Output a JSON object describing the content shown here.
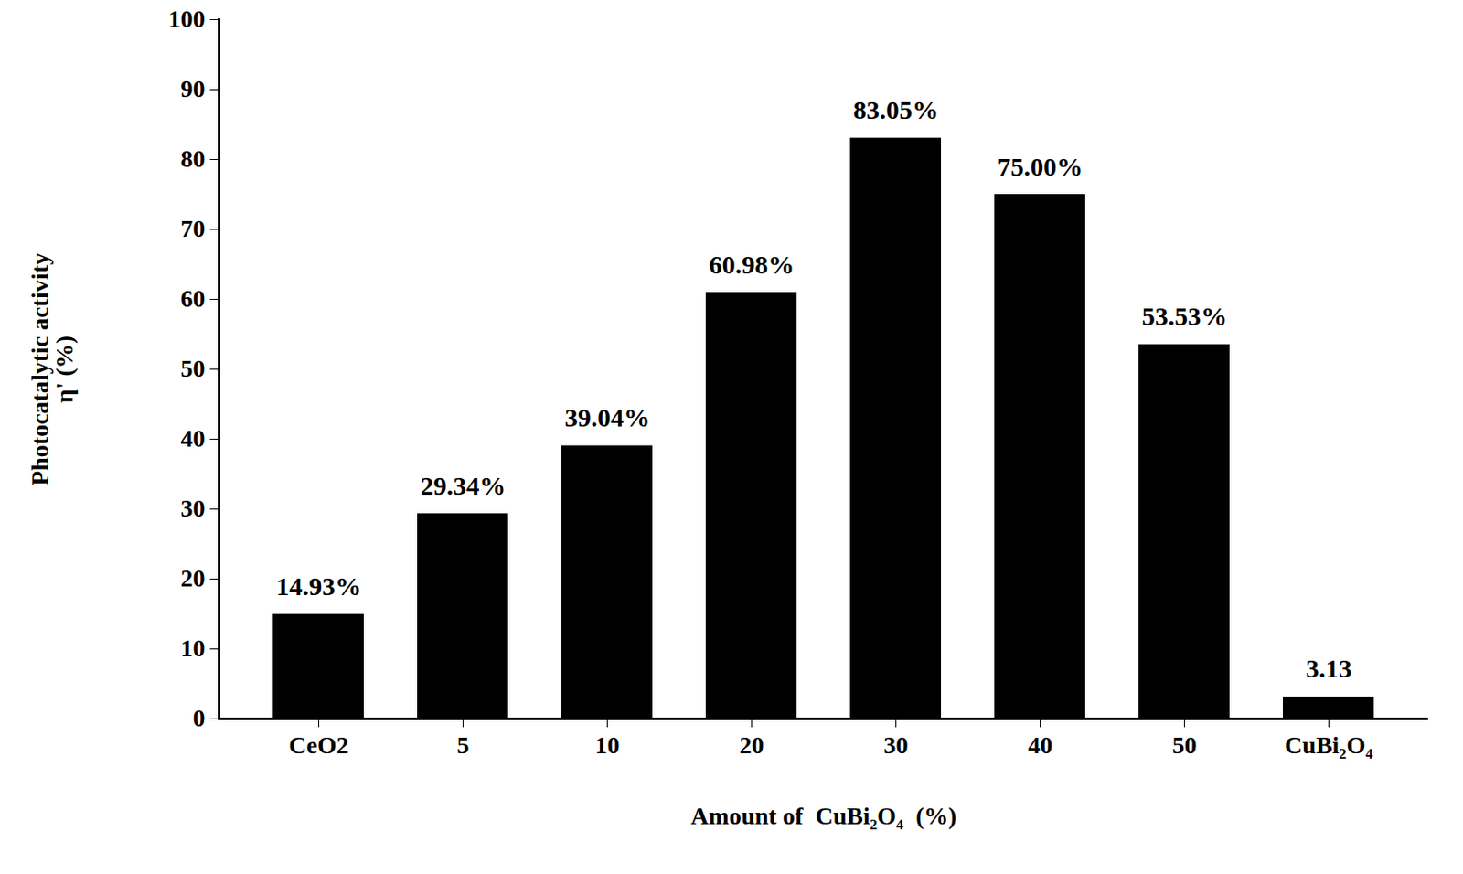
{
  "chart_data": {
    "type": "bar",
    "x_label": "Amount of  CuBi₂O₄  (%)",
    "y_label": "Photocatalytic activity\nη' (%)",
    "categories": [
      "CeO2",
      "5",
      "10",
      "20",
      "30",
      "40",
      "50",
      "CuBi₂O₄"
    ],
    "values": [
      14.93,
      29.34,
      39.04,
      60.98,
      83.05,
      75.0,
      53.53,
      3.13
    ],
    "value_labels": [
      "14.93%",
      "29.34%",
      "39.04%",
      "60.98%",
      "83.05%",
      "75.00%",
      "53.53%",
      "3.13"
    ],
    "color": "#000000",
    "ylim": [
      0,
      100
    ],
    "yticks": [
      0,
      10,
      20,
      30,
      40,
      50,
      60,
      70,
      80,
      90,
      100
    ],
    "grid": false,
    "data_labels": true
  }
}
